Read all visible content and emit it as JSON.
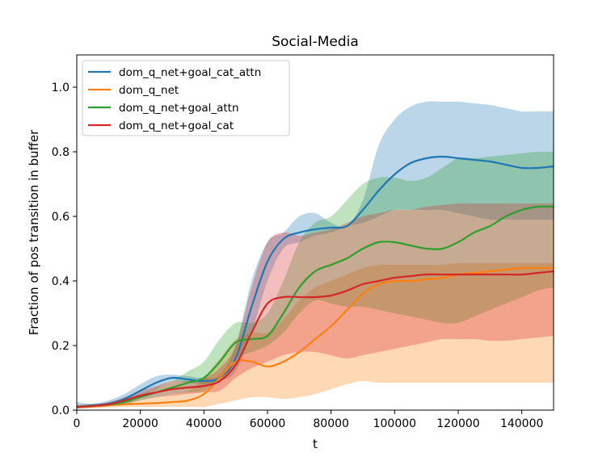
{
  "chart_data": {
    "type": "line",
    "title": "Social-Media",
    "xlabel": "t",
    "ylabel": "Fraction of pos transition in buffer",
    "xlim": [
      0,
      150000
    ],
    "ylim": [
      0,
      1.1
    ],
    "xticks": [
      0,
      20000,
      40000,
      60000,
      80000,
      100000,
      120000,
      140000
    ],
    "xtick_labels": [
      "0",
      "20000",
      "40000",
      "60000",
      "80000",
      "100000",
      "120000",
      "140000"
    ],
    "yticks": [
      0.0,
      0.2,
      0.4,
      0.6,
      0.8,
      1.0
    ],
    "ytick_labels": [
      "0.0",
      "0.2",
      "0.4",
      "0.6",
      "0.8",
      "1.0"
    ],
    "grid": false,
    "legend_position": "top-left",
    "x": [
      0,
      5000,
      10000,
      15000,
      20000,
      25000,
      30000,
      35000,
      40000,
      45000,
      50000,
      55000,
      60000,
      65000,
      70000,
      75000,
      80000,
      85000,
      90000,
      95000,
      100000,
      105000,
      110000,
      115000,
      120000,
      125000,
      130000,
      135000,
      140000,
      145000,
      150000
    ],
    "series": [
      {
        "name": "dom_q_net+goal_cat_attn",
        "color": "#1f77b4",
        "band_opacity": 0.3,
        "values": [
          0.01,
          0.015,
          0.02,
          0.035,
          0.06,
          0.085,
          0.1,
          0.095,
          0.09,
          0.1,
          0.16,
          0.32,
          0.46,
          0.53,
          0.55,
          0.56,
          0.565,
          0.57,
          0.62,
          0.68,
          0.73,
          0.765,
          0.78,
          0.785,
          0.78,
          0.775,
          0.77,
          0.76,
          0.75,
          0.75,
          0.755
        ],
        "upper": [
          0.025,
          0.02,
          0.03,
          0.05,
          0.08,
          0.105,
          0.11,
          0.105,
          0.1,
          0.11,
          0.2,
          0.4,
          0.52,
          0.55,
          0.6,
          0.61,
          0.58,
          0.57,
          0.65,
          0.82,
          0.9,
          0.94,
          0.955,
          0.955,
          0.955,
          0.95,
          0.945,
          0.935,
          0.925,
          0.925,
          0.925
        ],
        "lower": [
          0.005,
          0.01,
          0.015,
          0.025,
          0.045,
          0.065,
          0.09,
          0.085,
          0.08,
          0.09,
          0.12,
          0.24,
          0.4,
          0.5,
          0.52,
          0.54,
          0.55,
          0.57,
          0.58,
          0.6,
          0.62,
          0.62,
          0.62,
          0.62,
          0.61,
          0.6,
          0.59,
          0.59,
          0.59,
          0.59,
          0.59
        ]
      },
      {
        "name": "dom_q_net",
        "color": "#ff7f0e",
        "band_opacity": 0.3,
        "values": [
          0.01,
          0.012,
          0.015,
          0.018,
          0.02,
          0.022,
          0.025,
          0.03,
          0.05,
          0.1,
          0.15,
          0.15,
          0.135,
          0.15,
          0.18,
          0.22,
          0.26,
          0.31,
          0.36,
          0.39,
          0.4,
          0.4,
          0.405,
          0.41,
          0.42,
          0.425,
          0.43,
          0.435,
          0.44,
          0.44,
          0.44
        ],
        "upper": [
          0.015,
          0.018,
          0.02,
          0.025,
          0.03,
          0.04,
          0.05,
          0.06,
          0.1,
          0.16,
          0.22,
          0.24,
          0.24,
          0.28,
          0.34,
          0.38,
          0.4,
          0.42,
          0.44,
          0.45,
          0.45,
          0.45,
          0.45,
          0.45,
          0.455,
          0.455,
          0.455,
          0.455,
          0.455,
          0.455,
          0.455
        ],
        "lower": [
          0.005,
          0.006,
          0.008,
          0.01,
          0.01,
          0.01,
          0.01,
          0.01,
          0.01,
          0.02,
          0.03,
          0.04,
          0.04,
          0.035,
          0.04,
          0.05,
          0.065,
          0.08,
          0.09,
          0.085,
          0.085,
          0.085,
          0.085,
          0.085,
          0.085,
          0.085,
          0.085,
          0.085,
          0.085,
          0.085,
          0.085
        ]
      },
      {
        "name": "dom_q_net+goal_attn",
        "color": "#2ca02c",
        "band_opacity": 0.3,
        "values": [
          0.01,
          0.013,
          0.017,
          0.025,
          0.04,
          0.055,
          0.07,
          0.085,
          0.1,
          0.15,
          0.21,
          0.22,
          0.23,
          0.3,
          0.38,
          0.43,
          0.45,
          0.47,
          0.5,
          0.52,
          0.52,
          0.51,
          0.5,
          0.5,
          0.52,
          0.55,
          0.57,
          0.6,
          0.62,
          0.63,
          0.63
        ],
        "upper": [
          0.015,
          0.018,
          0.022,
          0.035,
          0.05,
          0.07,
          0.09,
          0.12,
          0.15,
          0.22,
          0.27,
          0.27,
          0.3,
          0.4,
          0.52,
          0.58,
          0.6,
          0.65,
          0.7,
          0.72,
          0.72,
          0.71,
          0.72,
          0.75,
          0.78,
          0.78,
          0.785,
          0.79,
          0.795,
          0.8,
          0.8
        ],
        "lower": [
          0.005,
          0.008,
          0.012,
          0.018,
          0.03,
          0.04,
          0.05,
          0.055,
          0.06,
          0.1,
          0.16,
          0.18,
          0.2,
          0.24,
          0.3,
          0.34,
          0.33,
          0.32,
          0.32,
          0.31,
          0.3,
          0.29,
          0.28,
          0.27,
          0.27,
          0.29,
          0.31,
          0.33,
          0.35,
          0.37,
          0.38
        ]
      },
      {
        "name": "dom_q_net+goal_cat",
        "color": "#d62728",
        "band_opacity": 0.3,
        "values": [
          0.01,
          0.013,
          0.018,
          0.03,
          0.045,
          0.055,
          0.065,
          0.07,
          0.075,
          0.09,
          0.14,
          0.24,
          0.33,
          0.35,
          0.35,
          0.35,
          0.355,
          0.37,
          0.39,
          0.4,
          0.41,
          0.415,
          0.42,
          0.42,
          0.42,
          0.42,
          0.42,
          0.42,
          0.42,
          0.425,
          0.43
        ],
        "upper": [
          0.015,
          0.018,
          0.025,
          0.04,
          0.06,
          0.075,
          0.09,
          0.09,
          0.1,
          0.13,
          0.2,
          0.38,
          0.52,
          0.55,
          0.54,
          0.55,
          0.56,
          0.58,
          0.6,
          0.61,
          0.62,
          0.62,
          0.63,
          0.635,
          0.64,
          0.64,
          0.64,
          0.64,
          0.64,
          0.64,
          0.64
        ],
        "lower": [
          0.005,
          0.008,
          0.012,
          0.02,
          0.03,
          0.04,
          0.045,
          0.05,
          0.055,
          0.06,
          0.1,
          0.13,
          0.15,
          0.17,
          0.18,
          0.18,
          0.17,
          0.16,
          0.17,
          0.18,
          0.19,
          0.2,
          0.21,
          0.22,
          0.22,
          0.22,
          0.215,
          0.215,
          0.22,
          0.225,
          0.23
        ]
      }
    ]
  }
}
